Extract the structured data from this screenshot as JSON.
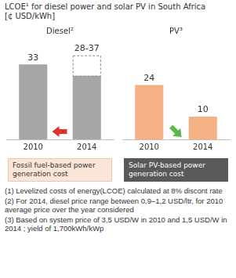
{
  "title": "LCOE¹ for diesel power and solar PV in South Africa [¢ USD/kWh]",
  "chart_data": [
    {
      "type": "bar",
      "title": "Diesel²",
      "categories": [
        "2010",
        "2014"
      ],
      "values": [
        33,
        28
      ],
      "range_upper": [
        null,
        37
      ],
      "value_labels": [
        "33",
        "28-37"
      ],
      "color": "#a6a6a6",
      "ylim": [
        0,
        40
      ],
      "grid": false,
      "tick_labels": "x",
      "data_labels": true,
      "annotation": "Fossil fuel-based power generation cost"
    },
    {
      "type": "bar",
      "title": "PV³",
      "categories": [
        "2010",
        "2014"
      ],
      "values": [
        24,
        10
      ],
      "color": "#f4b183",
      "ylim": [
        0,
        40
      ],
      "grid": false,
      "tick_labels": "x",
      "data_labels": true,
      "annotation": "Solar PV-based power generation cost"
    }
  ],
  "footnotes": [
    "(1) Levelized costs of energy(LCOE) calculated at 8% discont rate",
    "(2) For 2014, diesel price range between 0,9–1,2 USD/ltr, for 2010 average price over the year considered",
    "(3) Based on system price of 3,5 USD/W in 2010 and 1,5 USD/W in 2014 ; yield of 1,700kWh/kWp"
  ]
}
